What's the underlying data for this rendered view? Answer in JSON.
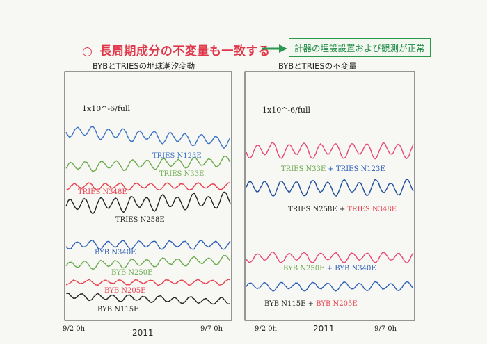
{
  "headline": {
    "bullet": "○",
    "text": "長周期成分の不変量も一致する",
    "color": "#e0384a"
  },
  "conclusion": {
    "text": "計器の埋設設置および観測が正常",
    "color": "#1f8a45"
  },
  "chart_data": [
    {
      "type": "line",
      "title": "BYBとTRIESの地球潮汐変動",
      "scale_label": "1x10^-6/full",
      "x_tick_labels": [
        "9/2 0h",
        "9/7 0h"
      ],
      "x_center_label": "2011",
      "x_range_days": [
        0,
        5.5
      ],
      "series": [
        {
          "name": "TRIES N123E",
          "color": "#3a72c6"
        },
        {
          "name": "TRIES N33E",
          "color": "#6aaa4c"
        },
        {
          "name": "TRIES N348E",
          "color": "#e8424f"
        },
        {
          "name": "TRIES N258E",
          "color": "#222222"
        },
        {
          "name": "BYB N340E",
          "color": "#2d5fb8"
        },
        {
          "name": "BYB N250E",
          "color": "#6aaa4c"
        },
        {
          "name": "BYB N205E",
          "color": "#e8424f"
        },
        {
          "name": "BYB N115E",
          "color": "#222222"
        }
      ]
    },
    {
      "type": "line",
      "title": "BYBとTRIESの不変量",
      "scale_label": "1x10^-6/full",
      "x_tick_labels": [
        "9/2 0h",
        "9/7 0h"
      ],
      "x_center_label": "2011",
      "x_range_days": [
        0,
        5.5
      ],
      "series": [
        {
          "name_parts": [
            "TRIES N33E",
            "TRIES N123E"
          ],
          "colors": [
            "#6aaa4c",
            "#2d5fb8"
          ],
          "line_color": "#e8457a"
        },
        {
          "name_parts": [
            "TRIES N258E",
            "TRIES N348E"
          ],
          "colors": [
            "#222222",
            "#e8424f"
          ],
          "line_color": "#1e4d9a"
        },
        {
          "name_parts": [
            "BYB N250E",
            "BYB N340E"
          ],
          "colors": [
            "#6aaa4c",
            "#2d5fb8"
          ],
          "line_color": "#e8457a"
        },
        {
          "name_parts": [
            "BYB N115E",
            "BYB N205E"
          ],
          "colors": [
            "#222222",
            "#e8424f"
          ],
          "line_color": "#2d5fb8"
        }
      ]
    }
  ]
}
